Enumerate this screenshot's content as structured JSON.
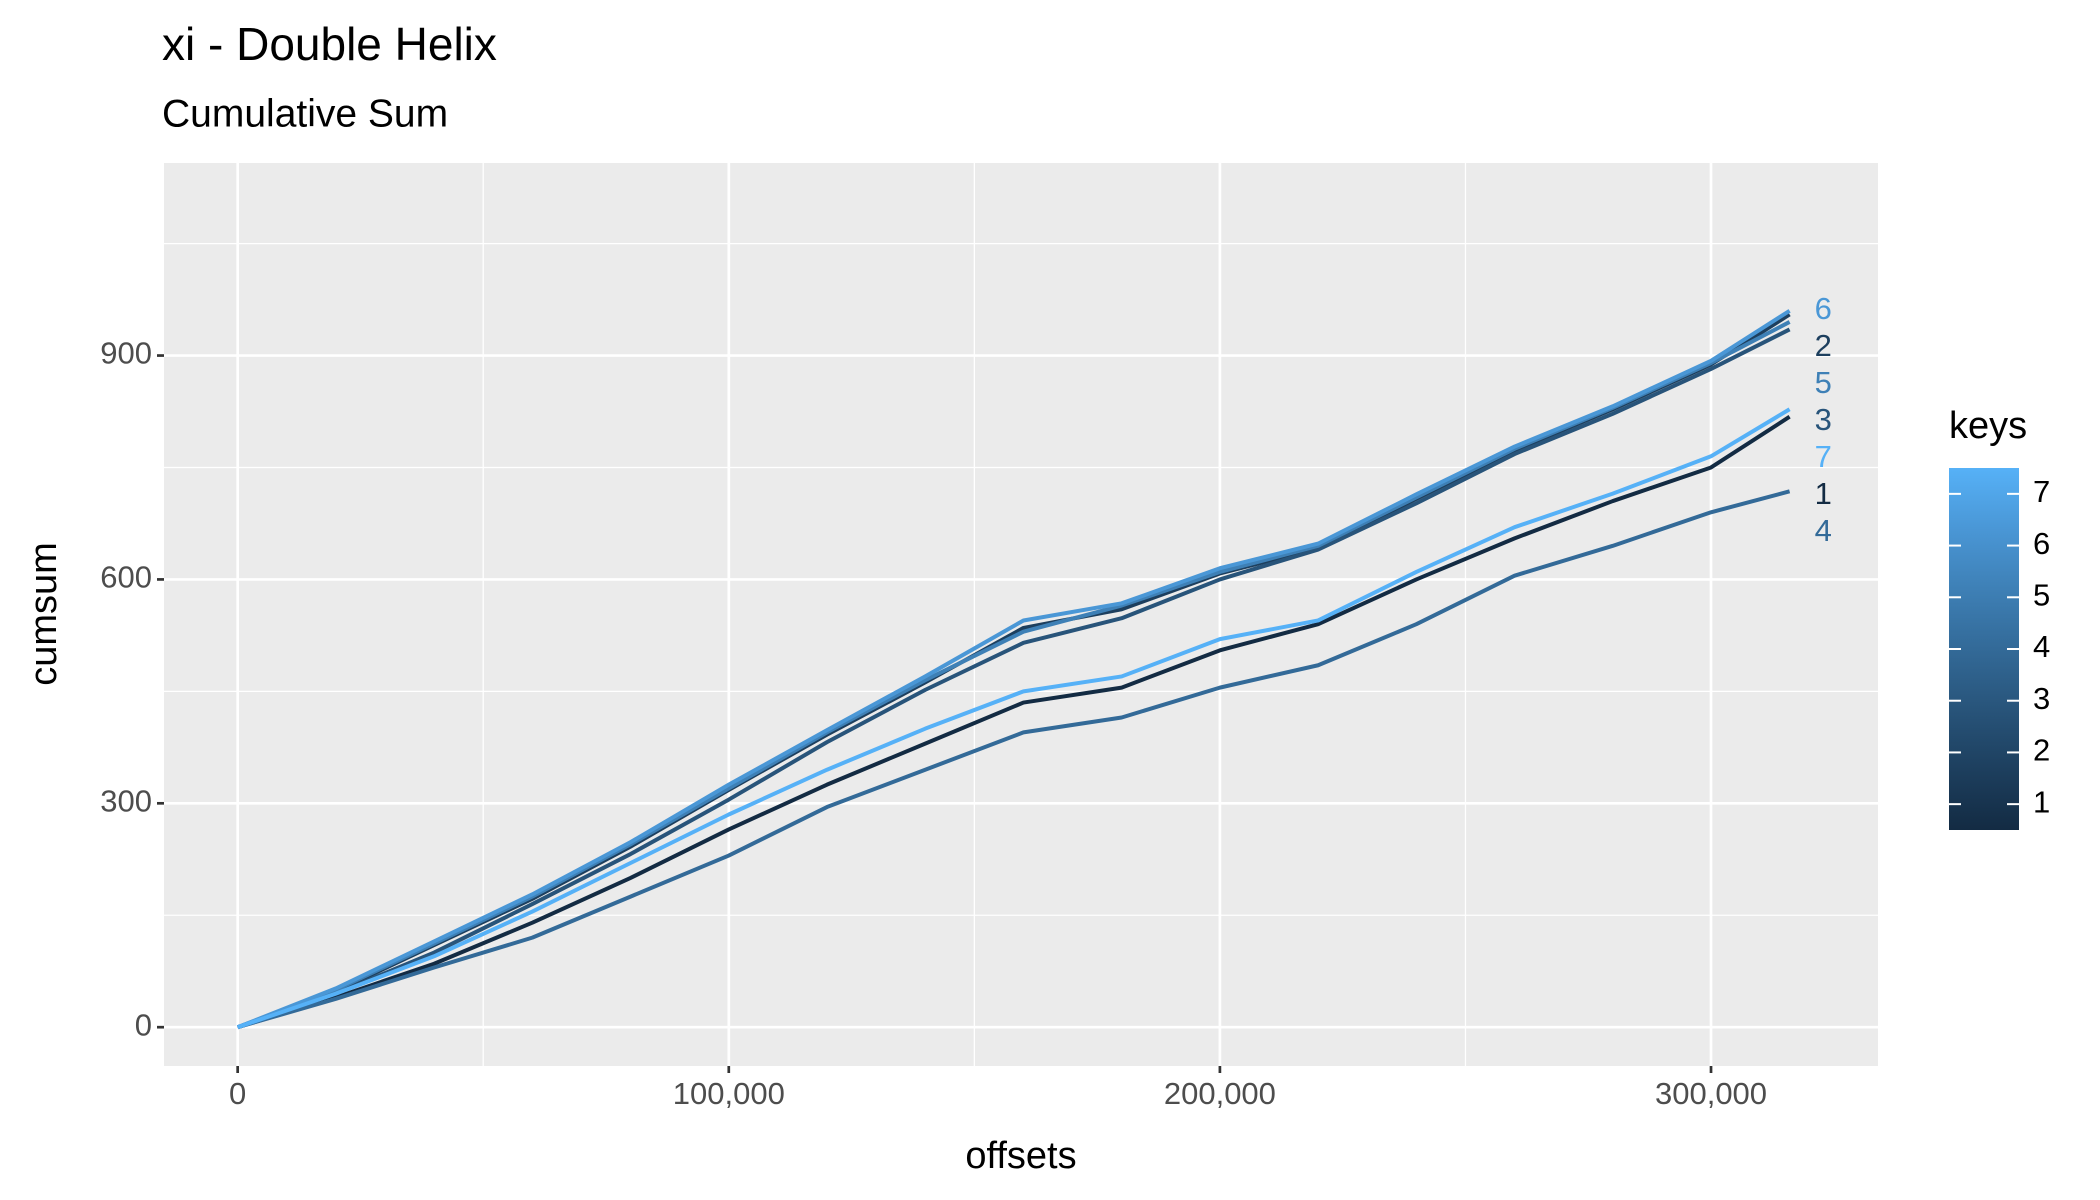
{
  "chart_data": {
    "type": "line",
    "title": "xi - Double Helix",
    "subtitle": "Cumulative Sum",
    "x_label": "offsets",
    "y_label": "cumsum",
    "x": [
      0,
      20000,
      40000,
      60000,
      80000,
      100000,
      120000,
      140000,
      160000,
      180000,
      200000,
      220000,
      240000,
      260000,
      280000,
      300000,
      316000
    ],
    "series": [
      {
        "name": "1",
        "color": "#132B43",
        "values": [
          0,
          40,
          85,
          140,
          200,
          265,
          325,
          380,
          435,
          455,
          505,
          540,
          600,
          655,
          705,
          750,
          818
        ]
      },
      {
        "name": "2",
        "color": "#1D3F5E",
        "values": [
          0,
          48,
          110,
          172,
          242,
          318,
          392,
          462,
          535,
          560,
          608,
          642,
          708,
          773,
          828,
          888,
          955
        ]
      },
      {
        "name": "3",
        "color": "#28547A",
        "values": [
          0,
          45,
          100,
          165,
          232,
          305,
          382,
          452,
          515,
          548,
          600,
          640,
          702,
          768,
          822,
          882,
          935
        ]
      },
      {
        "name": "4",
        "color": "#336A98",
        "values": [
          0,
          38,
          80,
          120,
          175,
          230,
          295,
          345,
          395,
          415,
          455,
          485,
          540,
          605,
          645,
          690,
          718
        ]
      },
      {
        "name": "5",
        "color": "#3E80B6",
        "values": [
          0,
          50,
          112,
          175,
          245,
          320,
          395,
          465,
          530,
          565,
          610,
          645,
          710,
          775,
          830,
          890,
          945
        ]
      },
      {
        "name": "6",
        "color": "#4A97D6",
        "values": [
          0,
          52,
          115,
          178,
          248,
          325,
          398,
          470,
          545,
          568,
          615,
          648,
          714,
          778,
          832,
          893,
          960
        ]
      },
      {
        "name": "7",
        "color": "#56B1F7",
        "values": [
          0,
          45,
          95,
          155,
          220,
          285,
          345,
          400,
          450,
          470,
          520,
          545,
          610,
          670,
          715,
          765,
          828
        ]
      }
    ],
    "xlim": [
      -15000,
      334000
    ],
    "ylim": [
      -52,
      1158
    ],
    "xticks": [
      0,
      {
        "value": 100000,
        "label": "100,000"
      },
      {
        "value": 200000,
        "label": "200,000"
      },
      {
        "value": 300000,
        "label": "300,000"
      }
    ],
    "yticks": [
      0,
      300,
      600,
      900
    ],
    "xminor": [
      50000,
      150000,
      250000
    ],
    "yminor": [
      150,
      450,
      750,
      1050
    ],
    "grid": true,
    "legend": {
      "title": "keys",
      "position": "right"
    }
  }
}
